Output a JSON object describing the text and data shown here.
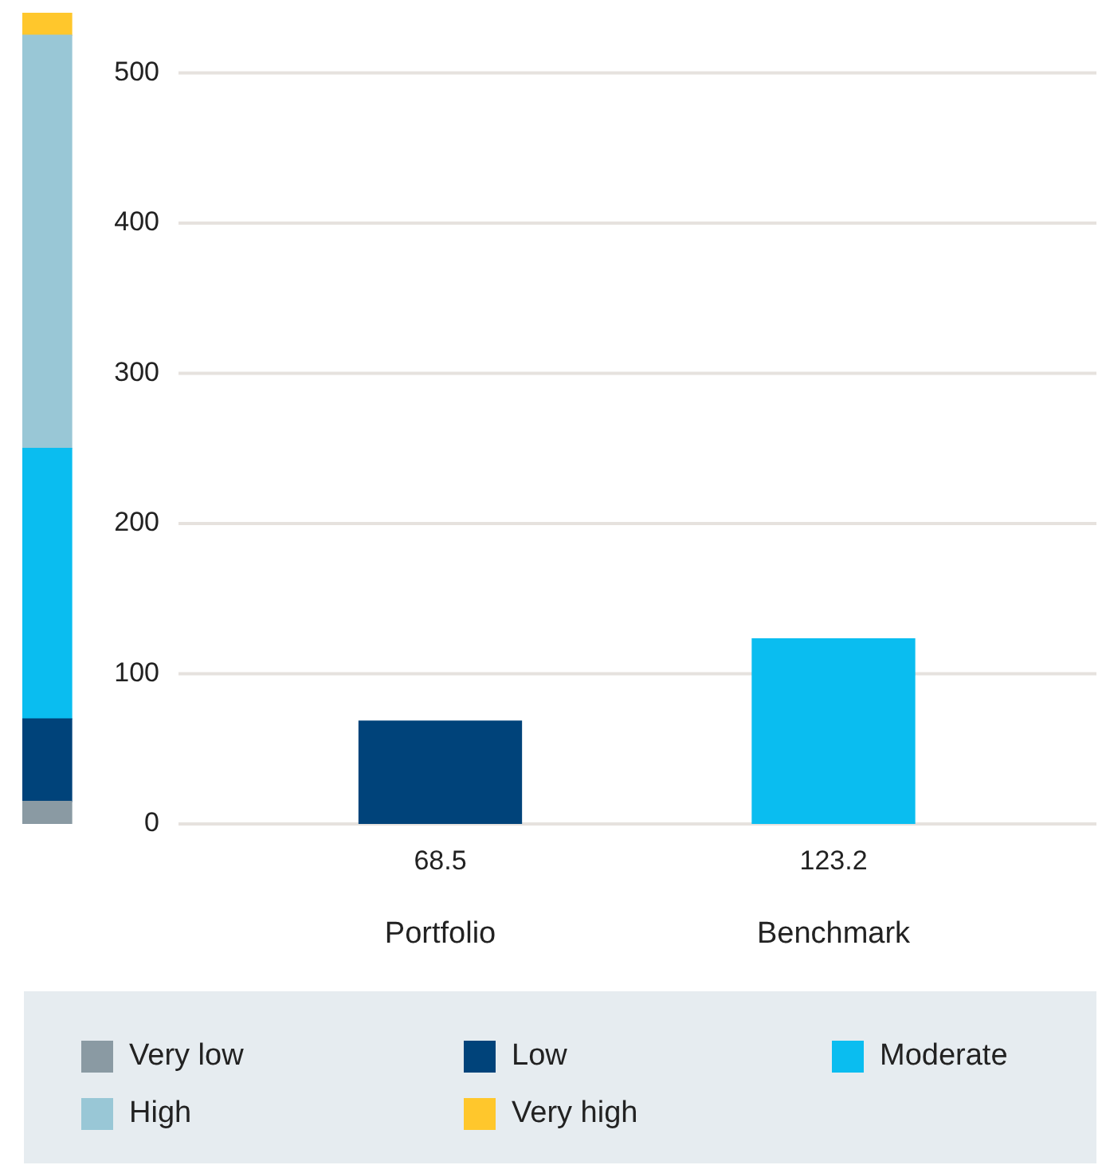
{
  "chart_data": {
    "type": "bar",
    "categories": [
      null,
      "Portfolio",
      "Benchmark"
    ],
    "stacked": true,
    "series": [
      {
        "name": "Very low",
        "color": "#8a9aa3",
        "values": [
          15,
          null,
          null
        ]
      },
      {
        "name": "Low",
        "color": "#00437a",
        "values": [
          55,
          null,
          null
        ]
      },
      {
        "name": "Moderate",
        "color": "#0abdf0",
        "values": [
          180,
          null,
          null
        ]
      },
      {
        "name": "High",
        "color": "#99c7d6",
        "values": [
          275,
          null,
          null
        ]
      },
      {
        "name": "Very high",
        "color": "#ffc72c",
        "values": [
          15,
          null,
          null
        ]
      },
      {
        "colors": [
          null,
          "#00437a",
          "#0abdf0"
        ],
        "values": [
          null,
          68.5,
          123.2
        ],
        "value_labels": [
          null,
          "68.5",
          "123.2"
        ]
      }
    ],
    "ylim": [
      0,
      540
    ],
    "yticks": [
      0,
      100,
      200,
      300,
      400,
      500
    ],
    "grid": "y",
    "legend": "bottom"
  }
}
